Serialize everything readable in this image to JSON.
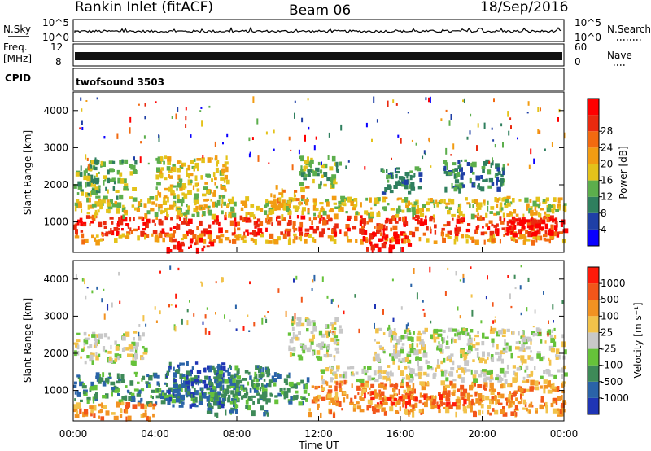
{
  "header": {
    "station": "Rankin Inlet (fitACF)",
    "beam": "Beam 06",
    "date": "18/Sep/2016"
  },
  "panels": {
    "nsky_label": "N.Sky",
    "nsky_ticks": [
      "10^5",
      "10^0"
    ],
    "nsearch_label": "N.Search",
    "freq_label_top": "Freq.",
    "freq_label_unit": "[MHz]",
    "freq_ticks": [
      "12",
      "8"
    ],
    "nave_label": "Nave",
    "nave_ticks": [
      "60",
      "0"
    ],
    "cpid_label": "CPID",
    "cpid_value": "twofsound 3503"
  },
  "chart_data": [
    {
      "type": "heatmap",
      "name": "power",
      "ylabel": "Slant Range [km]",
      "yticks": [
        "1000",
        "2000",
        "3000",
        "4000"
      ],
      "ylim": [
        180,
        4500
      ],
      "xlim": [
        0,
        24
      ],
      "colorbar_label": "Power [dB]",
      "colorbar_ticks": [
        "4",
        "8",
        "12",
        "16",
        "20",
        "24",
        "28"
      ],
      "colorbar_colors": [
        "#0a00ff",
        "#1f3fa6",
        "#2f7f5e",
        "#5cae4c",
        "#e4c21a",
        "#f29c12",
        "#f26a10",
        "#ea2a0f",
        "#ff0000"
      ],
      "bands": [
        {
          "t0": 0.0,
          "t1": 24.0,
          "r0": 700,
          "r1": 1200,
          "level": 7
        },
        {
          "t0": 0.0,
          "t1": 24.0,
          "r0": 500,
          "r1": 700,
          "level": 5
        },
        {
          "t0": 0.0,
          "t1": 24.0,
          "r0": 1200,
          "r1": 1700,
          "level": 4
        },
        {
          "t0": 0.0,
          "t1": 3.0,
          "r0": 1700,
          "r1": 2700,
          "level": 3
        },
        {
          "t0": 4.0,
          "t1": 7.5,
          "r0": 1700,
          "r1": 2800,
          "level": 4
        },
        {
          "t0": 4.5,
          "t1": 7.0,
          "r0": 250,
          "r1": 600,
          "level": 8
        },
        {
          "t0": 9.5,
          "t1": 11.5,
          "r0": 1300,
          "r1": 2000,
          "level": 5
        },
        {
          "t0": 11.0,
          "t1": 13.0,
          "r0": 2000,
          "r1": 2800,
          "level": 3
        },
        {
          "t0": 14.0,
          "t1": 16.5,
          "r0": 300,
          "r1": 700,
          "level": 8
        },
        {
          "t0": 15.0,
          "t1": 17.0,
          "r0": 1800,
          "r1": 2500,
          "level": 2
        },
        {
          "t0": 18.0,
          "t1": 21.0,
          "r0": 1900,
          "r1": 2700,
          "level": 2
        },
        {
          "t0": 21.0,
          "t1": 24.0,
          "r0": 700,
          "r1": 1100,
          "level": 8
        }
      ]
    },
    {
      "type": "heatmap",
      "name": "velocity",
      "ylabel": "Slant Range [km]",
      "yticks": [
        "1000",
        "2000",
        "3000",
        "4000"
      ],
      "ylim": [
        180,
        4500
      ],
      "xlim": [
        0,
        24
      ],
      "xticks": [
        "00:00",
        "04:00",
        "08:00",
        "12:00",
        "16:00",
        "20:00",
        "00:00"
      ],
      "xlabel": "Time UT",
      "colorbar_label": "Velocity [m s⁻¹]",
      "colorbar_ticks": [
        "1000",
        "500",
        "100",
        "25",
        "-25",
        "-100",
        "-500",
        "-1000"
      ],
      "colorbar_colors": [
        "#1f35b5",
        "#2a63a8",
        "#3e8a58",
        "#66c23a",
        "#c8c8c8",
        "#f2c24a",
        "#f29222",
        "#f2561a",
        "#ff1a0a"
      ],
      "bands": [
        {
          "t0": 0.0,
          "t1": 11.5,
          "r0": 700,
          "r1": 1500,
          "level": 2
        },
        {
          "t0": 0.0,
          "t1": 4.0,
          "r0": 300,
          "r1": 700,
          "level": 6
        },
        {
          "t0": 0.0,
          "t1": 3.5,
          "r0": 1800,
          "r1": 2600,
          "level": 4
        },
        {
          "t0": 4.5,
          "t1": 7.5,
          "r0": 600,
          "r1": 1800,
          "level": 1
        },
        {
          "t0": 6.5,
          "t1": 9.5,
          "r0": 400,
          "r1": 1700,
          "level": 2
        },
        {
          "t0": 11.5,
          "t1": 24.0,
          "r0": 400,
          "r1": 1300,
          "level": 6
        },
        {
          "t0": 14.0,
          "t1": 20.0,
          "r0": 600,
          "r1": 1000,
          "level": 7
        },
        {
          "t0": 12.0,
          "t1": 24.0,
          "r0": 1300,
          "r1": 1700,
          "level": 4
        },
        {
          "t0": 14.5,
          "t1": 24.0,
          "r0": 1800,
          "r1": 2700,
          "level": 4
        },
        {
          "t0": 10.5,
          "t1": 13.0,
          "r0": 1900,
          "r1": 3000,
          "level": 4
        }
      ]
    }
  ]
}
